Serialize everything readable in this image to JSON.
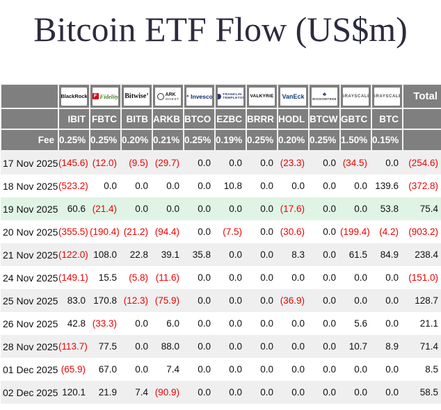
{
  "title": "Bitcoin ETF Flow (US$m)",
  "table": {
    "fee_row_label": "Fee",
    "total_column_label": "Total",
    "logos": [
      "blackrock-logo",
      "fidelity-logo",
      "bitwise-logo",
      "ark-invest-logo",
      "invesco-logo",
      "franklin-templeton-logo",
      "valkyrie-logo",
      "vaneck-logo",
      "wisdomtree-logo",
      "grayscale-logo",
      "grayscale-logo"
    ]
  },
  "colors": {
    "header_bg": "#7f7f7f",
    "header_text": "#ffffff",
    "negative_value": "#ee0000",
    "row_stripe": "#efefef",
    "row_highlight": "#e0f4e6",
    "title_text": "#2c2c3e"
  },
  "chart_data": {
    "type": "table",
    "title": "Bitcoin ETF Flow (US$m)",
    "columns": [
      "IBIT",
      "FBTC",
      "BITB",
      "ARKB",
      "BTCO",
      "EZBC",
      "BRRR",
      "HODL",
      "BTCW",
      "GBTC",
      "BTC"
    ],
    "issuers": [
      "BlackRock",
      "Fidelity",
      "Bitwise",
      "ARK Invest",
      "Invesco",
      "Franklin Templeton",
      "Valkyrie",
      "VanEck",
      "WisdomTree",
      "Grayscale",
      "Grayscale"
    ],
    "fees_pct": [
      "0.25%",
      "0.25%",
      "0.20%",
      "0.21%",
      "0.25%",
      "0.19%",
      "0.25%",
      "0.20%",
      "0.25%",
      "1.50%",
      "0.15%"
    ],
    "rows": [
      {
        "date": "17 Nov 2025",
        "flows": [
          -145.6,
          -12.0,
          -9.5,
          -29.7,
          0.0,
          0.0,
          0.0,
          -23.3,
          0.0,
          -34.5,
          0.0
        ],
        "total": -254.6
      },
      {
        "date": "18 Nov 2025",
        "flows": [
          -523.2,
          0.0,
          0.0,
          0.0,
          0.0,
          10.8,
          0.0,
          0.0,
          0.0,
          0.0,
          139.6
        ],
        "total": -372.8
      },
      {
        "date": "19 Nov 2025",
        "flows": [
          60.6,
          -21.4,
          0.0,
          0.0,
          0.0,
          0.0,
          0.0,
          -17.6,
          0.0,
          0.0,
          53.8
        ],
        "total": 75.4,
        "highlight": true
      },
      {
        "date": "20 Nov 2025",
        "flows": [
          -355.5,
          -190.4,
          -21.2,
          -94.4,
          0.0,
          -7.5,
          0.0,
          -30.6,
          0.0,
          -199.4,
          -4.2
        ],
        "total": -903.2
      },
      {
        "date": "21 Nov 2025",
        "flows": [
          -122.0,
          108.0,
          22.8,
          39.1,
          35.8,
          0.0,
          0.0,
          8.3,
          0.0,
          61.5,
          84.9
        ],
        "total": 238.4
      },
      {
        "date": "24 Nov 2025",
        "flows": [
          -149.1,
          15.5,
          -5.8,
          -11.6,
          0.0,
          0.0,
          0.0,
          0.0,
          0.0,
          0.0,
          0.0
        ],
        "total": -151.0
      },
      {
        "date": "25 Nov 2025",
        "flows": [
          83.0,
          170.8,
          -12.3,
          -75.9,
          0.0,
          0.0,
          0.0,
          -36.9,
          0.0,
          0.0,
          0.0
        ],
        "total": 128.7
      },
      {
        "date": "26 Nov 2025",
        "flows": [
          42.8,
          -33.3,
          0.0,
          6.0,
          0.0,
          0.0,
          0.0,
          0.0,
          0.0,
          5.6,
          0.0
        ],
        "total": 21.1
      },
      {
        "date": "28 Nov 2025",
        "flows": [
          -113.7,
          77.5,
          0.0,
          88.0,
          0.0,
          0.0,
          0.0,
          0.0,
          0.0,
          10.7,
          8.9
        ],
        "total": 71.4
      },
      {
        "date": "01 Dec 2025",
        "flows": [
          -65.9,
          67.0,
          0.0,
          7.4,
          0.0,
          0.0,
          0.0,
          0.0,
          0.0,
          0.0,
          0.0
        ],
        "total": 8.5
      },
      {
        "date": "02 Dec 2025",
        "flows": [
          120.1,
          21.9,
          7.4,
          -90.9,
          0.0,
          0.0,
          0.0,
          0.0,
          0.0,
          0.0,
          0.0
        ],
        "total": 58.5
      }
    ],
    "highlighted_row": "19 Nov 2025",
    "value_format": "negative values shown in red parentheses, e.g. (145.6)"
  }
}
